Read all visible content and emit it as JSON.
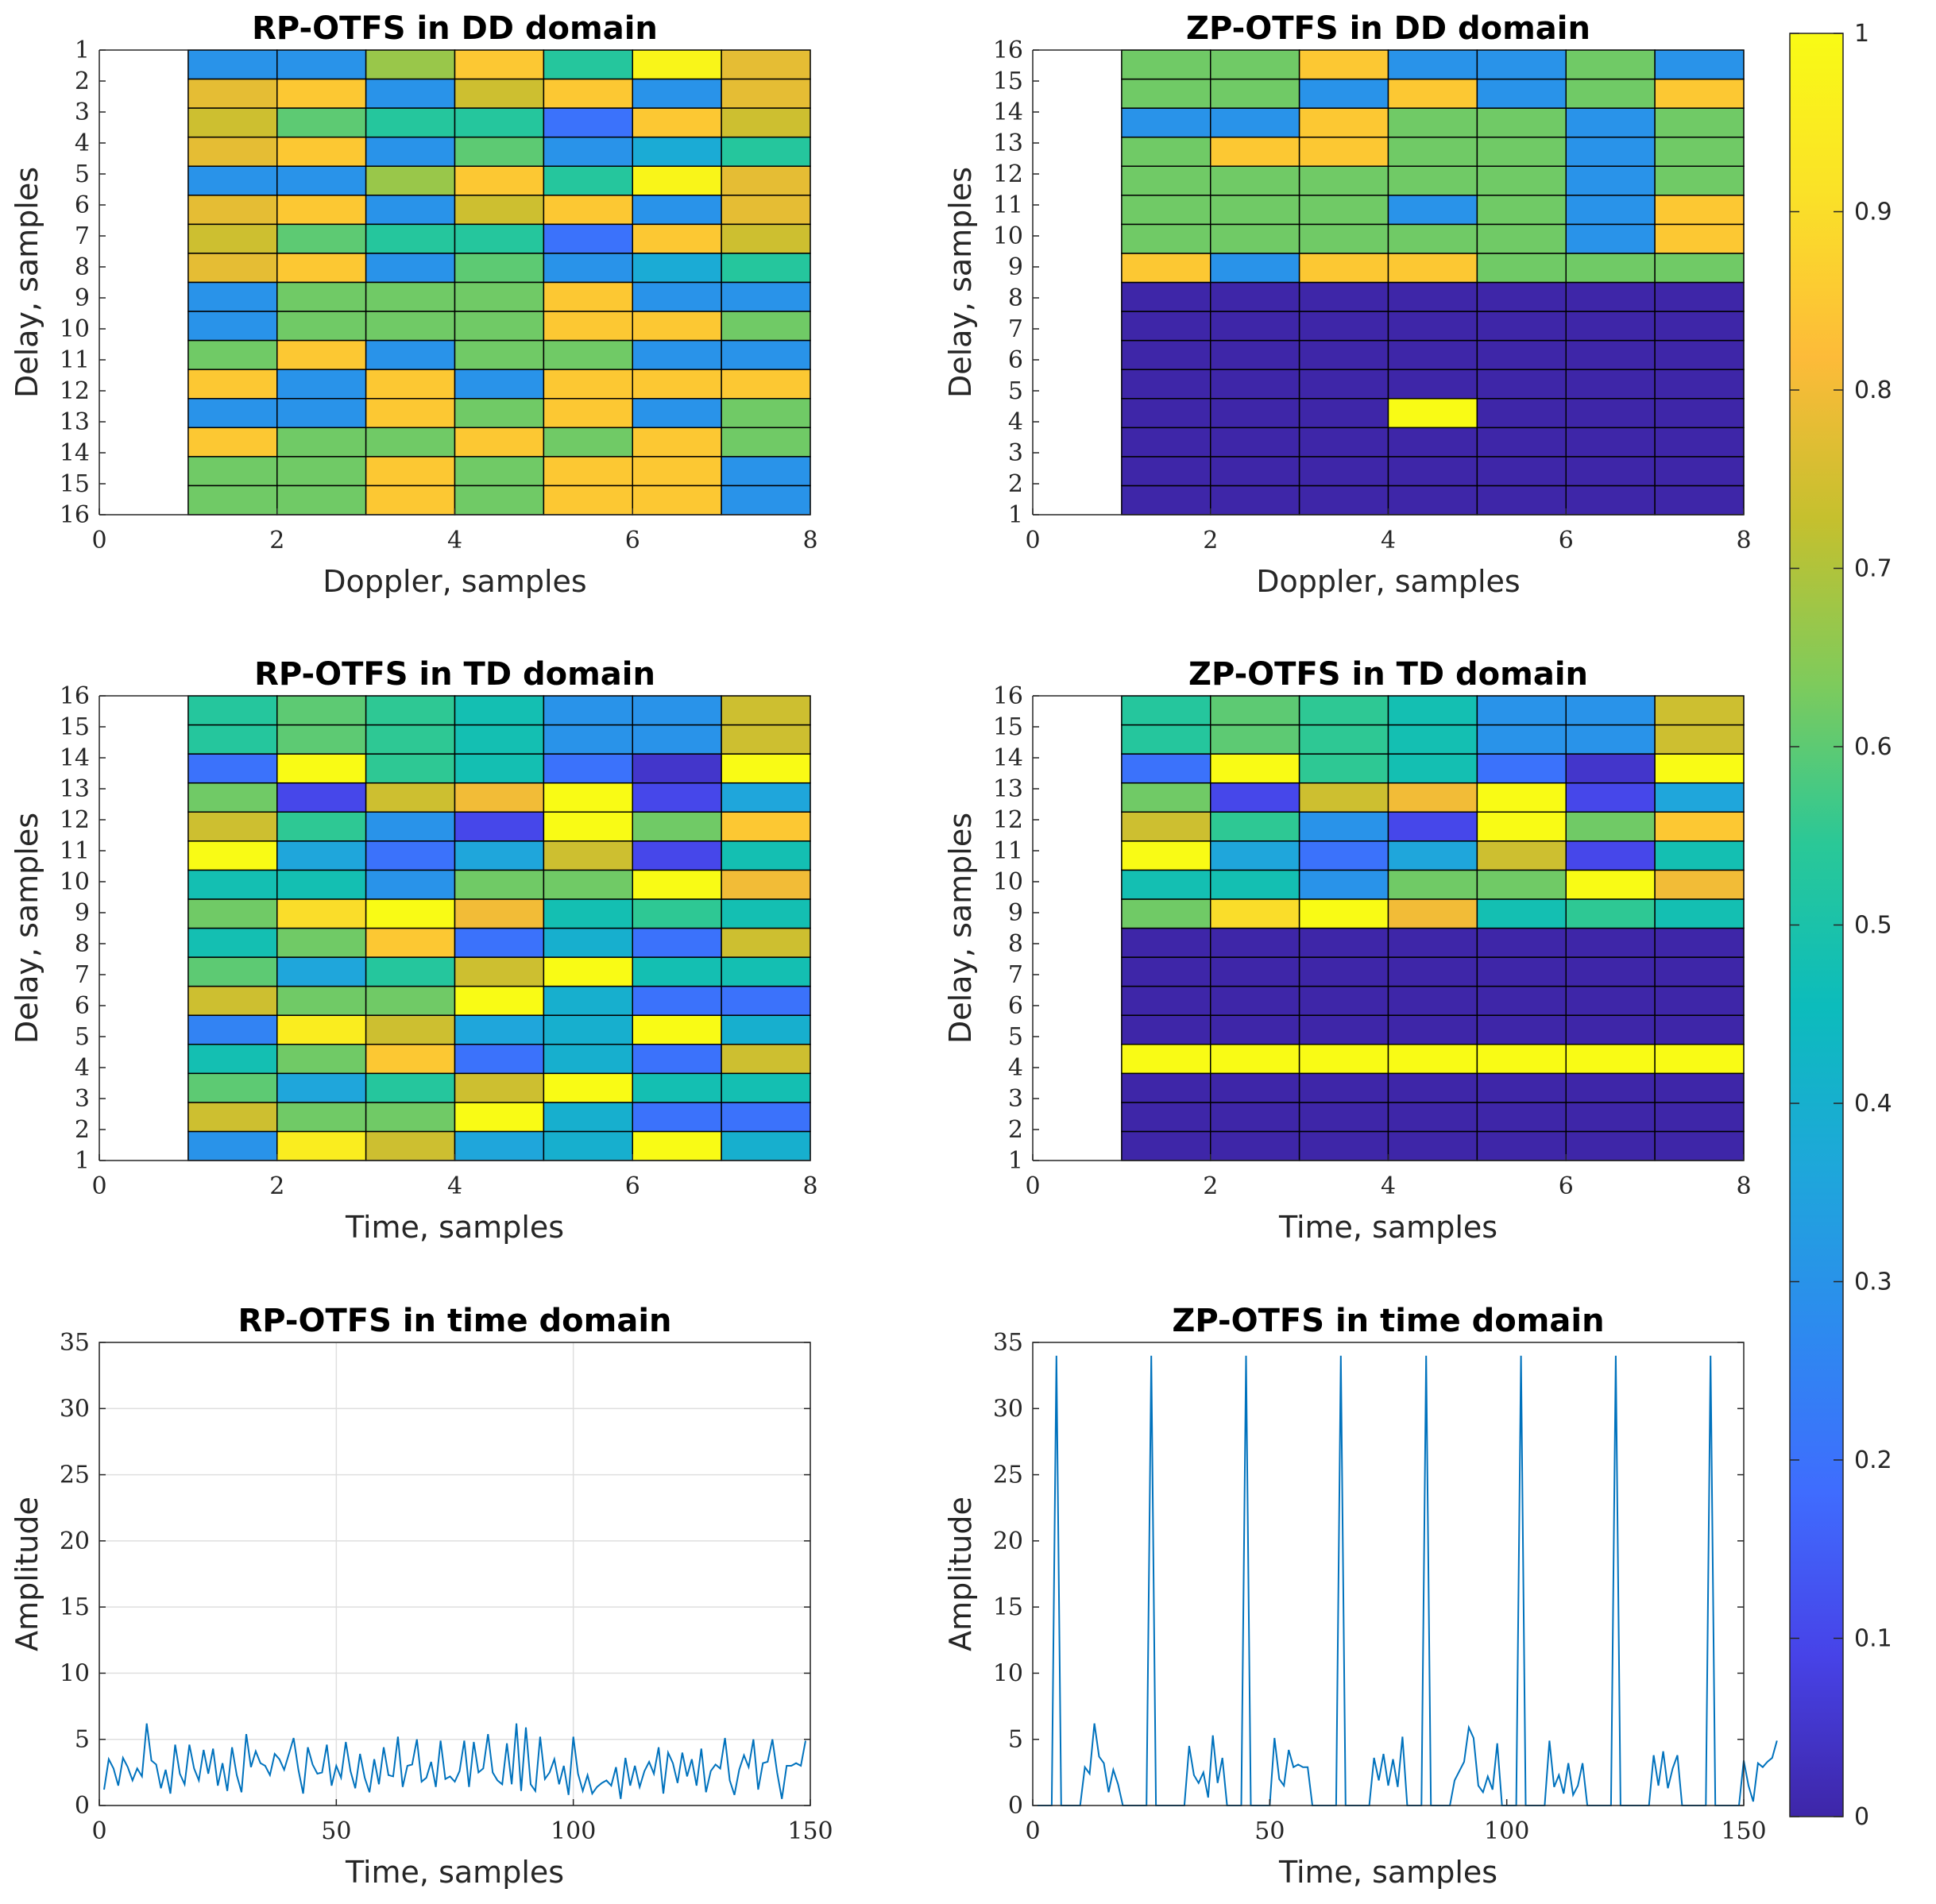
{
  "figure": {
    "colorbar": {
      "min": 0,
      "max": 1,
      "ticks": [
        0,
        0.1,
        0.2,
        0.3,
        0.4,
        0.5,
        0.6,
        0.7,
        0.8,
        0.9,
        1
      ],
      "tick_labels": [
        "0",
        "0.1",
        "0.2",
        "0.3",
        "0.4",
        "0.5",
        "0.6",
        "0.7",
        "0.8",
        "0.9",
        "1"
      ],
      "colormap": [
        "#3e26a8",
        "#4743e8",
        "#3f6cfe",
        "#2d8aef",
        "#1ea7da",
        "#0cbcbc",
        "#2ac897",
        "#7fcb5b",
        "#c5c02e",
        "#fdbb39",
        "#fae128",
        "#f9fb15"
      ]
    }
  },
  "chart_data": [
    {
      "id": "rp_dd",
      "type": "heatmap",
      "title": "RP-OTFS in DD domain",
      "xlabel": "Doppler, samples",
      "ylabel": "Delay, samples",
      "xlim": [
        0,
        8
      ],
      "xticks": [
        0,
        2,
        4,
        6,
        8
      ],
      "y_categories": [
        "1",
        "2",
        "3",
        "4",
        "5",
        "6",
        "7",
        "8",
        "9",
        "10",
        "11",
        "12",
        "13",
        "14",
        "15",
        "16"
      ],
      "y_direction": "reverse",
      "columns_x_start": [
        1,
        2,
        3,
        4,
        5,
        6,
        7
      ],
      "values": [
        [
          0.3,
          0.3,
          0.67,
          0.85,
          0.53,
          0.98,
          0.78
        ],
        [
          0.78,
          0.85,
          0.3,
          0.74,
          0.85,
          0.3,
          0.78
        ],
        [
          0.74,
          0.6,
          0.53,
          0.53,
          0.2,
          0.85,
          0.74
        ],
        [
          0.78,
          0.85,
          0.3,
          0.6,
          0.3,
          0.38,
          0.53
        ],
        [
          0.3,
          0.3,
          0.67,
          0.85,
          0.53,
          0.98,
          0.78
        ],
        [
          0.78,
          0.85,
          0.3,
          0.74,
          0.85,
          0.3,
          0.78
        ],
        [
          0.74,
          0.6,
          0.53,
          0.53,
          0.2,
          0.85,
          0.74
        ],
        [
          0.78,
          0.85,
          0.3,
          0.6,
          0.3,
          0.38,
          0.53
        ],
        [
          0.3,
          0.62,
          0.62,
          0.62,
          0.85,
          0.3,
          0.3
        ],
        [
          0.3,
          0.62,
          0.62,
          0.62,
          0.85,
          0.85,
          0.62
        ],
        [
          0.62,
          0.85,
          0.3,
          0.62,
          0.62,
          0.3,
          0.3
        ],
        [
          0.85,
          0.3,
          0.85,
          0.3,
          0.85,
          0.85,
          0.85
        ],
        [
          0.3,
          0.3,
          0.85,
          0.62,
          0.85,
          0.3,
          0.62
        ],
        [
          0.85,
          0.62,
          0.62,
          0.85,
          0.62,
          0.85,
          0.62
        ],
        [
          0.62,
          0.62,
          0.85,
          0.62,
          0.85,
          0.85,
          0.3
        ],
        [
          0.62,
          0.62,
          0.85,
          0.62,
          0.85,
          0.85,
          0.3
        ]
      ]
    },
    {
      "id": "zp_dd",
      "type": "heatmap",
      "title": "ZP-OTFS in DD domain",
      "xlabel": "Doppler, samples",
      "ylabel": "Delay, samples",
      "xlim": [
        0,
        8
      ],
      "xticks": [
        0,
        2,
        4,
        6,
        8
      ],
      "y_categories": [
        "1",
        "2",
        "3",
        "4",
        "5",
        "6",
        "7",
        "8",
        "9",
        "10",
        "11",
        "12",
        "13",
        "14",
        "15",
        "16"
      ],
      "y_direction": "normal",
      "columns_x_start": [
        1,
        2,
        3,
        4,
        5,
        6,
        7
      ],
      "values": [
        [
          0,
          0,
          0,
          0,
          0,
          0,
          0
        ],
        [
          0,
          0,
          0,
          0,
          0,
          0,
          0
        ],
        [
          0,
          0,
          0,
          0,
          0,
          0,
          0
        ],
        [
          0,
          0,
          0,
          1,
          0,
          0,
          0
        ],
        [
          0,
          0,
          0,
          0,
          0,
          0,
          0
        ],
        [
          0,
          0,
          0,
          0,
          0,
          0,
          0
        ],
        [
          0,
          0,
          0,
          0,
          0,
          0,
          0
        ],
        [
          0,
          0,
          0,
          0,
          0,
          0,
          0
        ],
        [
          0.85,
          0.3,
          0.85,
          0.85,
          0.62,
          0.62,
          0.62
        ],
        [
          0.62,
          0.62,
          0.62,
          0.62,
          0.62,
          0.3,
          0.85
        ],
        [
          0.62,
          0.62,
          0.62,
          0.3,
          0.62,
          0.3,
          0.85
        ],
        [
          0.62,
          0.62,
          0.62,
          0.62,
          0.62,
          0.3,
          0.62
        ],
        [
          0.62,
          0.85,
          0.85,
          0.62,
          0.62,
          0.3,
          0.62
        ],
        [
          0.3,
          0.3,
          0.85,
          0.62,
          0.62,
          0.3,
          0.62
        ],
        [
          0.62,
          0.62,
          0.3,
          0.85,
          0.3,
          0.62,
          0.85
        ],
        [
          0.62,
          0.62,
          0.85,
          0.3,
          0.3,
          0.62,
          0.3
        ]
      ]
    },
    {
      "id": "rp_td",
      "type": "heatmap",
      "title": "RP-OTFS in TD domain",
      "xlabel": "Time, samples",
      "ylabel": "Delay, samples",
      "xlim": [
        0,
        8
      ],
      "xticks": [
        0,
        2,
        4,
        6,
        8
      ],
      "y_categories": [
        "1",
        "2",
        "3",
        "4",
        "5",
        "6",
        "7",
        "8",
        "9",
        "10",
        "11",
        "12",
        "13",
        "14",
        "15",
        "16"
      ],
      "y_direction": "normal",
      "columns_x_start": [
        1,
        2,
        3,
        4,
        5,
        6,
        7
      ],
      "values": [
        [
          0.3,
          0.95,
          0.74,
          0.36,
          0.4,
          1.0,
          0.4
        ],
        [
          0.74,
          0.62,
          0.62,
          1.0,
          0.4,
          0.2,
          0.2
        ],
        [
          0.6,
          0.36,
          0.53,
          0.74,
          1.0,
          0.48,
          0.48
        ],
        [
          0.48,
          0.62,
          0.85,
          0.2,
          0.4,
          0.2,
          0.74
        ],
        [
          0.25,
          0.95,
          0.74,
          0.36,
          0.4,
          1.0,
          0.4
        ],
        [
          0.74,
          0.62,
          0.62,
          1.0,
          0.4,
          0.2,
          0.2
        ],
        [
          0.6,
          0.36,
          0.53,
          0.74,
          1.0,
          0.48,
          0.48
        ],
        [
          0.48,
          0.62,
          0.85,
          0.2,
          0.4,
          0.2,
          0.74
        ],
        [
          0.62,
          0.9,
          1.0,
          0.8,
          0.48,
          0.55,
          0.48
        ],
        [
          0.48,
          0.48,
          0.3,
          0.62,
          0.62,
          1.0,
          0.8
        ],
        [
          1.0,
          0.36,
          0.2,
          0.36,
          0.74,
          0.1,
          0.48
        ],
        [
          0.74,
          0.55,
          0.3,
          0.1,
          1.0,
          0.62,
          0.85
        ],
        [
          0.62,
          0.1,
          0.74,
          0.8,
          1.0,
          0.1,
          0.36
        ],
        [
          0.2,
          1.0,
          0.55,
          0.48,
          0.2,
          0.05,
          1.0
        ],
        [
          0.53,
          0.6,
          0.55,
          0.48,
          0.3,
          0.3,
          0.74
        ],
        [
          0.53,
          0.6,
          0.55,
          0.48,
          0.3,
          0.3,
          0.74
        ]
      ]
    },
    {
      "id": "zp_td",
      "type": "heatmap",
      "title": "ZP-OTFS in TD domain",
      "xlabel": "Time, samples",
      "ylabel": "Delay, samples",
      "xlim": [
        0,
        8
      ],
      "xticks": [
        0,
        2,
        4,
        6,
        8
      ],
      "y_categories": [
        "1",
        "2",
        "3",
        "4",
        "5",
        "6",
        "7",
        "8",
        "9",
        "10",
        "11",
        "12",
        "13",
        "14",
        "15",
        "16"
      ],
      "y_direction": "normal",
      "columns_x_start": [
        1,
        2,
        3,
        4,
        5,
        6,
        7
      ],
      "values": [
        [
          0,
          0,
          0,
          0,
          0,
          0,
          0
        ],
        [
          0,
          0,
          0,
          0,
          0,
          0,
          0
        ],
        [
          0,
          0,
          0,
          0,
          0,
          0,
          0
        ],
        [
          1,
          1,
          1,
          1,
          1,
          1,
          1
        ],
        [
          0,
          0,
          0,
          0,
          0,
          0,
          0
        ],
        [
          0,
          0,
          0,
          0,
          0,
          0,
          0
        ],
        [
          0,
          0,
          0,
          0,
          0,
          0,
          0
        ],
        [
          0,
          0,
          0,
          0,
          0,
          0,
          0
        ],
        [
          0.62,
          0.9,
          1.0,
          0.8,
          0.48,
          0.55,
          0.48
        ],
        [
          0.48,
          0.48,
          0.3,
          0.62,
          0.62,
          1.0,
          0.8
        ],
        [
          1.0,
          0.36,
          0.2,
          0.36,
          0.74,
          0.1,
          0.48
        ],
        [
          0.74,
          0.55,
          0.3,
          0.1,
          1.0,
          0.62,
          0.85
        ],
        [
          0.62,
          0.1,
          0.74,
          0.8,
          1.0,
          0.1,
          0.36
        ],
        [
          0.2,
          1.0,
          0.55,
          0.48,
          0.2,
          0.05,
          1.0
        ],
        [
          0.53,
          0.6,
          0.55,
          0.48,
          0.3,
          0.3,
          0.74
        ],
        [
          0.53,
          0.6,
          0.55,
          0.48,
          0.3,
          0.3,
          0.74
        ]
      ]
    },
    {
      "id": "rp_time",
      "type": "line",
      "title": "RP-OTFS in time domain",
      "xlabel": "Time, samples",
      "ylabel": "Amplitude",
      "xlim": [
        0,
        150
      ],
      "xticks": [
        0,
        50,
        100,
        150
      ],
      "ylim": [
        0,
        35
      ],
      "yticks": [
        0,
        5,
        10,
        15,
        20,
        25,
        30,
        35
      ],
      "grid": true,
      "series": [
        {
          "name": "RP-OTFS",
          "color": "#0072bd",
          "values": [
            1.2,
            3.5,
            2.8,
            1.5,
            3.6,
            2.9,
            1.9,
            2.8,
            2.2,
            6.2,
            3.4,
            3.1,
            1.3,
            2.7,
            0.9,
            4.6,
            2.4,
            1.6,
            4.6,
            2.8,
            1.9,
            4.2,
            2.4,
            4.3,
            1.5,
            3.2,
            1.1,
            4.4,
            2.3,
            1.0,
            5.4,
            2.9,
            4.1,
            3.2,
            3.0,
            2.3,
            3.9,
            3.5,
            2.7,
            3.9,
            5.1,
            2.7,
            0.9,
            4.4,
            3.1,
            2.4,
            2.5,
            4.6,
            1.5,
            3.0,
            2.1,
            4.8,
            2.6,
            1.3,
            3.9,
            2.1,
            1.0,
            3.5,
            1.6,
            4.4,
            2.3,
            2.2,
            5.2,
            1.4,
            3.0,
            3.1,
            5.0,
            1.8,
            2.1,
            3.3,
            1.4,
            4.9,
            2.0,
            2.2,
            1.8,
            2.6,
            4.9,
            1.4,
            4.8,
            2.5,
            2.8,
            5.4,
            2.5,
            1.9,
            1.6,
            4.7,
            1.6,
            6.2,
            1.1,
            5.9,
            1.6,
            1.1,
            5.2,
            2.0,
            2.5,
            3.5,
            1.6,
            3.0,
            0.8,
            5.2,
            2.4,
            1.1,
            2.3,
            0.9,
            1.4,
            1.7,
            1.9,
            1.5,
            2.9,
            0.5,
            3.6,
            1.5,
            3.0,
            1.4,
            2.6,
            3.3,
            2.4,
            4.4,
            0.9,
            4.0,
            3.2,
            1.7,
            4.0,
            2.2,
            3.5,
            1.5,
            4.3,
            1.0,
            2.6,
            3.1,
            2.8,
            5.1,
            1.9,
            0.8,
            2.7,
            3.8,
            2.9,
            5.0,
            1.2,
            3.2,
            3.3,
            5.0,
            2.5,
            0.5,
            3.0,
            3.0,
            3.2,
            3.0,
            4.9
          ]
        }
      ]
    },
    {
      "id": "zp_time",
      "type": "line",
      "title": "ZP-OTFS in time domain",
      "xlabel": "Time, samples",
      "ylabel": "Amplitude",
      "xlim": [
        0,
        150
      ],
      "xticks": [
        0,
        50,
        100,
        150
      ],
      "ylim": [
        0,
        35
      ],
      "yticks": [
        0,
        5,
        10,
        15,
        20,
        25,
        30,
        35
      ],
      "grid": false,
      "series": [
        {
          "name": "ZP-OTFS",
          "color": "#0072bd",
          "values": [
            0,
            0,
            0,
            0,
            34,
            0,
            0,
            0,
            0,
            0,
            2.9,
            2.4,
            6.2,
            3.7,
            3.2,
            1.0,
            2.7,
            1.6,
            0,
            0,
            0,
            0,
            0,
            0,
            34,
            0,
            0,
            0,
            0,
            0,
            0,
            0,
            4.5,
            2.3,
            1.7,
            2.5,
            0.6,
            5.3,
            1.7,
            3.6,
            0,
            0,
            0,
            0,
            34,
            0,
            0,
            0,
            0,
            0,
            5.1,
            2.0,
            1.5,
            4.2,
            2.9,
            3.1,
            2.9,
            2.9,
            0,
            0,
            0,
            0,
            0,
            0,
            34,
            0,
            0,
            0,
            0,
            0,
            0,
            3.6,
            1.9,
            3.9,
            1.5,
            3.5,
            1.4,
            5.2,
            0,
            0,
            0,
            0,
            34,
            0,
            0,
            0,
            0,
            0,
            1.9,
            2.6,
            3.3,
            5.9,
            5.1,
            1.5,
            1.0,
            2.2,
            1.2,
            4.7,
            0,
            0,
            0,
            0,
            34,
            0,
            0,
            0,
            0,
            0,
            4.9,
            1.4,
            2.3,
            0.9,
            3.2,
            0.8,
            1.5,
            3.2,
            0,
            0,
            0,
            0,
            0,
            0,
            34,
            0,
            0,
            0,
            0,
            0,
            0,
            0,
            3.8,
            1.5,
            4.1,
            1.3,
            2.8,
            3.8,
            0,
            0,
            0,
            0,
            0,
            0,
            34,
            0,
            0,
            0,
            0,
            0,
            0,
            3.4,
            1.5,
            0.3,
            3.2,
            2.9,
            3.3,
            3.6,
            4.9
          ]
        }
      ]
    }
  ]
}
